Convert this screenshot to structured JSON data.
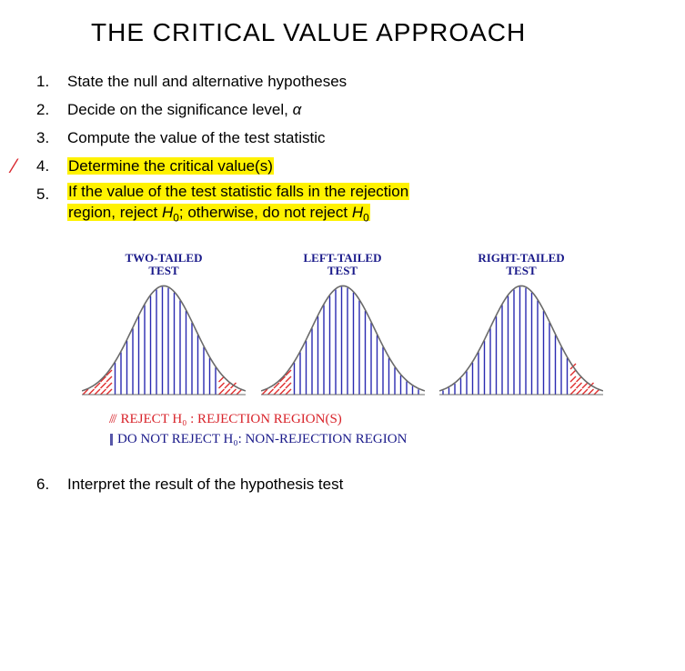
{
  "title": "THE CRITICAL VALUE APPROACH",
  "steps": {
    "s1": {
      "num": "1.",
      "text": "State the null and alternative hypotheses"
    },
    "s2": {
      "num": "2.",
      "text_pre": "Decide on the significance level, ",
      "alpha": "α"
    },
    "s3": {
      "num": "3.",
      "text": "Compute the value of the test statistic"
    },
    "s4": {
      "num": "4.",
      "text": "Determine the critical value(s)"
    },
    "s5": {
      "num": "5.",
      "part1": "If the value of the test statistic falls in the rejection",
      "part2a": "region, reject ",
      "h0a": "H",
      "h0a_sub": "0",
      "part2b": "; otherwise, do not reject ",
      "h0b": "H",
      "h0b_sub": "0"
    },
    "s6": {
      "num": "6.",
      "text": "Interpret the result of the hypothesis test"
    }
  },
  "diagrams": {
    "width": 180,
    "height": 130,
    "curve_color": "#6a6a6a",
    "curve_stroke": 1.6,
    "fill_blue": "#2a2ab0",
    "fill_red": "#e03030",
    "hatch_stroke": 1.4,
    "labels": {
      "two": "TWO-TAILED\nTEST",
      "left": "LEFT-TAILED\nTEST",
      "right": "RIGHT-TAILED\nTEST"
    },
    "two_tailed": {
      "red_regions": [
        [
          0,
          30
        ],
        [
          150,
          180
        ]
      ]
    },
    "left_tailed": {
      "red_regions": [
        [
          0,
          35
        ]
      ]
    },
    "right_tailed": {
      "red_regions": [
        [
          145,
          180
        ]
      ]
    }
  },
  "legend": {
    "red_swatch": "///",
    "red_text": "REJECT H₀ : REJECTION REGION(S)",
    "blue_swatch": "|||",
    "blue_text": "DO NOT REJECT H₀: NON-REJECTION REGION"
  },
  "colors": {
    "highlight": "#fff200",
    "text": "#000000",
    "red": "#d8232a",
    "blue": "#1a1a8a"
  }
}
